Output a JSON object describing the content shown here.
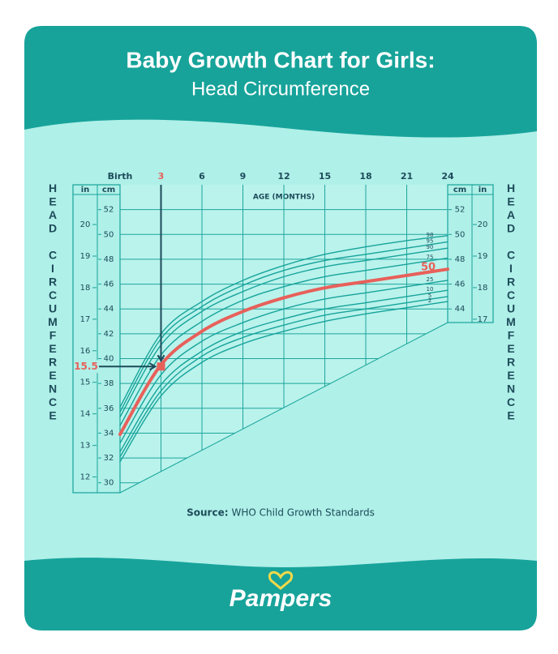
{
  "header": {
    "title": "Baby Growth Chart for Girls:",
    "subtitle": "Head Circumference"
  },
  "chart_data": {
    "type": "line",
    "x_label": "AGE (MONTHS)",
    "y_label": "HEAD CIRCUMFERENCE",
    "y_unit": "cm",
    "y2_unit": "in",
    "x": [
      0,
      3,
      6,
      9,
      12,
      15,
      18,
      21,
      24
    ],
    "xlim": [
      0,
      24
    ],
    "xticks": [
      {
        "value": 0,
        "label": "Birth"
      },
      3,
      6,
      9,
      12,
      15,
      18,
      21,
      24
    ],
    "ylim": [
      29.2,
      54
    ],
    "yticks": [
      30,
      32,
      34,
      36,
      38,
      40,
      42,
      44,
      46,
      48,
      50,
      52
    ],
    "yticks_right": [
      44,
      46,
      48,
      50,
      52
    ],
    "y2lim": [
      11.5,
      21.26
    ],
    "y2ticks": [
      12,
      13,
      14,
      15,
      16,
      17,
      18,
      19,
      20
    ],
    "y2ticks_right": [
      17,
      18,
      19,
      20
    ],
    "grid": true,
    "series": [
      {
        "name": "98",
        "color": "#17a39a",
        "values": [
          36.1,
          42.0,
          44.6,
          46.3,
          47.5,
          48.4,
          49.0,
          49.5,
          49.9
        ]
      },
      {
        "name": "95",
        "color": "#17a39a",
        "values": [
          35.7,
          41.6,
          44.2,
          45.9,
          47.1,
          47.9,
          48.4,
          48.9,
          49.4
        ]
      },
      {
        "name": "90",
        "color": "#17a39a",
        "values": [
          35.3,
          41.1,
          43.8,
          45.4,
          46.6,
          47.4,
          47.9,
          48.4,
          48.9
        ]
      },
      {
        "name": "75",
        "color": "#17a39a",
        "values": [
          34.6,
          40.3,
          43.0,
          44.7,
          45.8,
          46.6,
          47.1,
          47.6,
          48.1
        ]
      },
      {
        "name": "50",
        "color": "#e8605a",
        "values": [
          33.9,
          39.5,
          42.2,
          43.8,
          44.9,
          45.7,
          46.2,
          46.7,
          47.2
        ]
      },
      {
        "name": "25",
        "color": "#17a39a",
        "values": [
          33.2,
          38.7,
          41.4,
          42.9,
          44.0,
          44.8,
          45.3,
          45.8,
          46.3
        ]
      },
      {
        "name": "10",
        "color": "#17a39a",
        "values": [
          32.5,
          37.9,
          40.6,
          42.2,
          43.2,
          44.0,
          44.5,
          45.0,
          45.5
        ]
      },
      {
        "name": "5",
        "color": "#17a39a",
        "values": [
          32.1,
          37.4,
          40.2,
          41.7,
          42.7,
          43.5,
          44.0,
          44.5,
          45.0
        ]
      },
      {
        "name": "2",
        "color": "#17a39a",
        "values": [
          31.7,
          37.0,
          39.7,
          41.2,
          42.2,
          43.0,
          43.6,
          44.1,
          44.6
        ]
      }
    ],
    "highlight": {
      "x": 3,
      "value": 15.5,
      "color": "#e8605a"
    }
  },
  "source": {
    "label": "Source:",
    "text": "WHO Child Growth Standards"
  },
  "brand": "Pampers"
}
